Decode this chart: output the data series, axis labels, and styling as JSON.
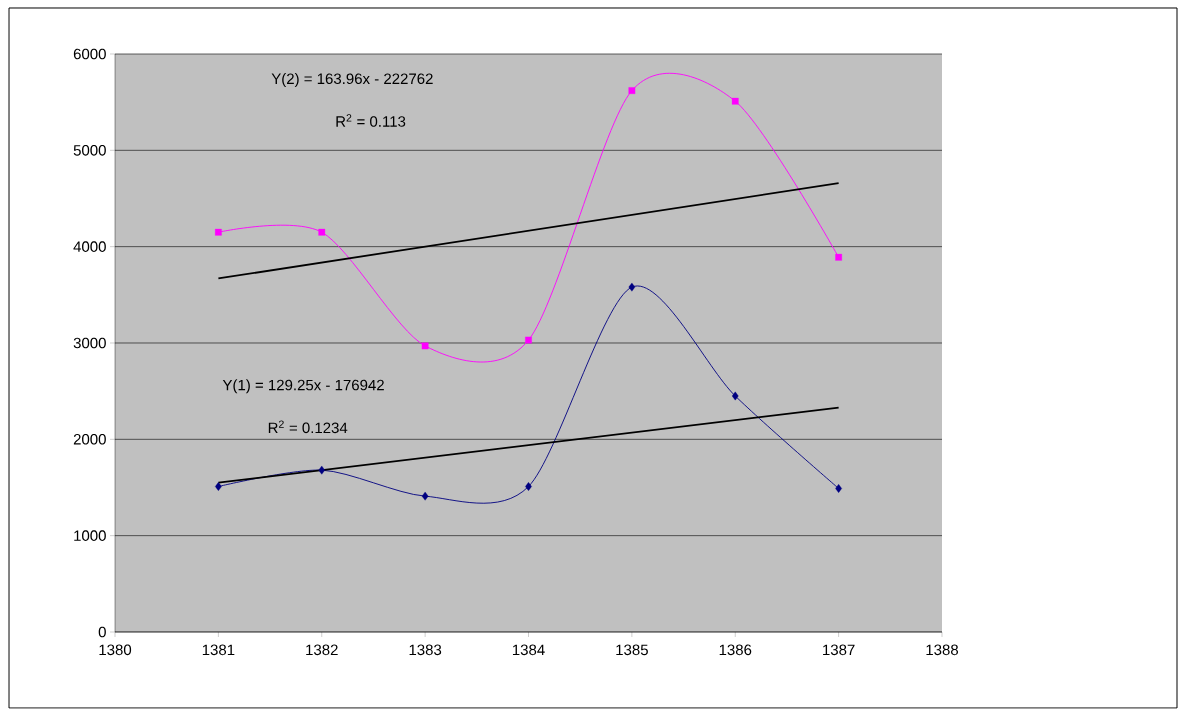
{
  "chart_data": {
    "type": "line",
    "x": [
      1381,
      1382,
      1383,
      1384,
      1385,
      1386,
      1387
    ],
    "series": [
      {
        "color": "#ff00ff",
        "marker": "square",
        "values": [
          4150,
          4150,
          2970,
          3030,
          5620,
          5510,
          3890
        ]
      },
      {
        "color": "#000080",
        "marker": "diamond",
        "values": [
          1510,
          1680,
          1410,
          1510,
          3580,
          2450,
          1490
        ]
      },
      {
        "color": "#000000",
        "marker": "none",
        "values": [
          3670,
          null,
          null,
          null,
          null,
          null,
          4660
        ]
      },
      {
        "color": "#000000",
        "marker": "none",
        "values": [
          1550,
          null,
          null,
          null,
          null,
          null,
          2330
        ]
      }
    ],
    "annotations": [
      "Y(2) = 163.96x - 222762",
      "R$^{2}$ = 0.113",
      "Y(1) = 129.25x - 176942",
      "R$^{2}$ = 0.1234"
    ],
    "xlim": [
      1380,
      1388
    ],
    "xticks": [
      1380,
      1381,
      1382,
      1383,
      1384,
      1385,
      1386,
      1387,
      1388
    ],
    "ylim": [
      0,
      6000
    ],
    "yticks": [
      0,
      1000,
      2000,
      3000,
      4000,
      5000,
      6000
    ],
    "grid": "y"
  }
}
